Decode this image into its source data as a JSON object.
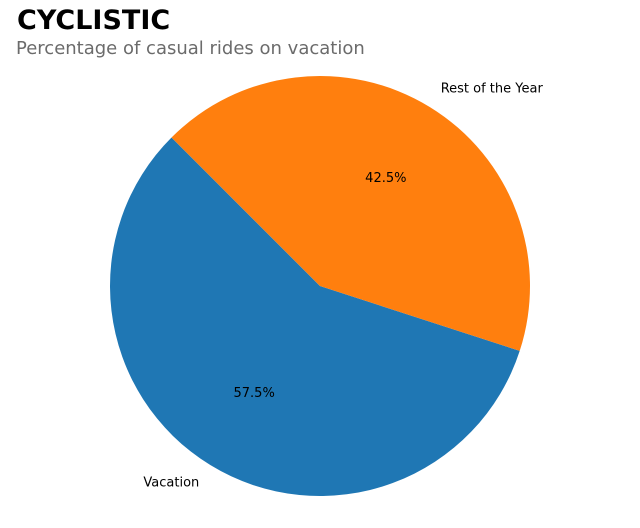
{
  "chart_data": {
    "type": "pie",
    "title": "CYCLISTIC",
    "subtitle": "Percentage of casual rides on vacation",
    "categories": [
      "Vacation",
      "Rest of the Year"
    ],
    "values": [
      57.5,
      42.5
    ],
    "value_labels": [
      "57.5%",
      "42.5%"
    ],
    "colors": [
      "#1f77b4",
      "#ff7f0e"
    ]
  }
}
